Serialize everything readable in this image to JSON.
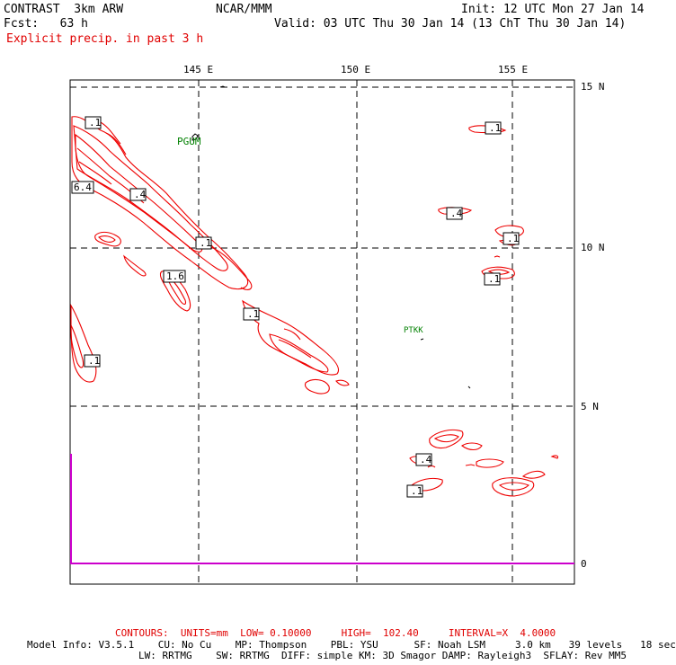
{
  "header": {
    "title": "CONTRAST  3km ARW",
    "org": "NCAR/MMM",
    "init": "Init: 12 UTC Mon 27 Jan 14",
    "fcst": "Fcst:   63 h",
    "valid": "Valid: 03 UTC Thu 30 Jan 14 (13 ChT Thu 30 Jan 14)",
    "field": "Explicit precip. in past 3 h"
  },
  "axes": {
    "lon_labels": [
      "145 E",
      "150 E",
      "155 E"
    ],
    "lat_labels": [
      "15 N",
      "10 N",
      "5 N",
      "0"
    ]
  },
  "stations": [
    "PGUM",
    "PTKK"
  ],
  "contour_labels": [
    ".1",
    "6.4",
    ".4",
    ".1",
    ".1",
    "1.6",
    ".1",
    ".4",
    ".1",
    ".1",
    ".1",
    ".1",
    ".4",
    ".1"
  ],
  "footer": {
    "contours": "CONTOURS:  UNITS=mm  LOW= 0.10000     HIGH=  102.40     INTERVAL=X  4.0000",
    "model_line1": "Model Info: V3.5.1    CU: No Cu    MP: Thompson    PBL: YSU      SF: Noah LSM     3.0 km   39 levels   18 sec",
    "model_line2": "LW: RRTMG    SW: RRTMG  DIFF: simple KM: 3D Smagor DAMP: Rayleigh3  SFLAY: Rev MM5"
  },
  "colors": {
    "contour": "#ee0000",
    "station": "#008000",
    "boundary": "#cc00cc",
    "header_field": "#e00000"
  }
}
